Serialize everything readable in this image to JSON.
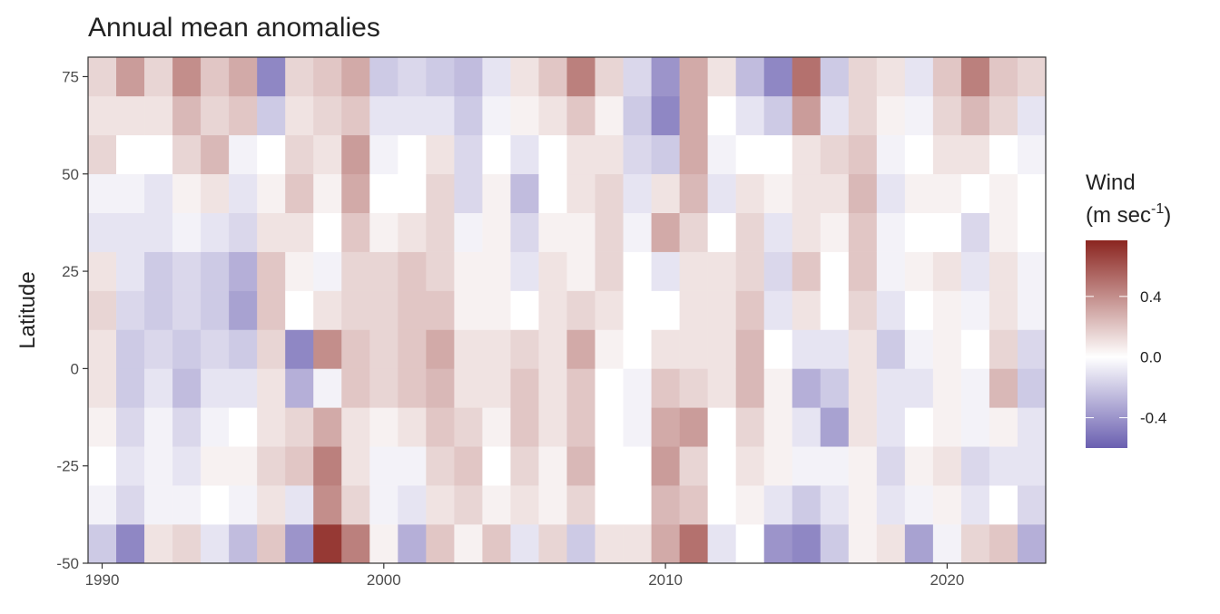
{
  "chart_data": {
    "type": "heatmap",
    "title": "Annual mean anomalies",
    "y_label": "Latitude",
    "legend_title": "Wind",
    "legend_unit": {
      "base": "(m sec",
      "sup": "-1",
      "end": ")"
    },
    "x": [
      1990,
      1991,
      1992,
      1993,
      1994,
      1995,
      1996,
      1997,
      1998,
      1999,
      2000,
      2001,
      2002,
      2003,
      2004,
      2005,
      2006,
      2007,
      2008,
      2009,
      2010,
      2011,
      2012,
      2013,
      2014,
      2015,
      2016,
      2017,
      2018,
      2019,
      2020,
      2021,
      2022,
      2023
    ],
    "y": [
      -45,
      -35,
      -25,
      -15,
      -5,
      5,
      15,
      25,
      35,
      45,
      55,
      65,
      75
    ],
    "z": [
      [
        -0.2,
        -0.05,
        0,
        0.05,
        0.1,
        0.1,
        0.15,
        0.1,
        -0.1,
        -0.05,
        0.15,
        0.1,
        0.15
      ],
      [
        -0.45,
        -0.15,
        -0.1,
        -0.15,
        -0.2,
        -0.2,
        -0.15,
        -0.1,
        -0.1,
        -0.05,
        0,
        0.1,
        0.35
      ],
      [
        0.1,
        -0.05,
        -0.05,
        -0.05,
        -0.1,
        -0.15,
        -0.2,
        -0.2,
        -0.1,
        -0.1,
        0,
        0.1,
        0.15
      ],
      [
        0.15,
        -0.05,
        -0.1,
        -0.15,
        -0.25,
        -0.2,
        -0.15,
        -0.15,
        -0.05,
        0.05,
        0.15,
        0.25,
        0.4
      ],
      [
        -0.1,
        0,
        0.05,
        -0.05,
        -0.1,
        -0.15,
        -0.2,
        -0.2,
        -0.1,
        0.1,
        0.25,
        0.15,
        0.2
      ],
      [
        -0.25,
        -0.05,
        0.05,
        0,
        -0.1,
        -0.2,
        -0.35,
        -0.3,
        -0.15,
        -0.1,
        -0.05,
        0.2,
        0.3
      ],
      [
        0.2,
        0.1,
        0.15,
        0.1,
        0.1,
        0.15,
        0.2,
        0.2,
        0.1,
        0.05,
        0,
        -0.2,
        -0.45
      ],
      [
        -0.4,
        -0.1,
        0.2,
        0.15,
        -0.3,
        -0.45,
        0,
        0.05,
        0.1,
        0.2,
        0.15,
        0.1,
        0.15
      ],
      [
        0.7,
        0.4,
        0.45,
        0.3,
        -0.05,
        0.4,
        0.1,
        -0.05,
        0,
        0.05,
        0.1,
        0.15,
        0.2
      ],
      [
        0.45,
        0.15,
        0.1,
        0.1,
        0.2,
        0.2,
        0.15,
        0.15,
        0.2,
        0.3,
        0.35,
        0.2,
        0.3
      ],
      [
        0.05,
        -0.05,
        -0.05,
        0.05,
        0.15,
        0.15,
        0.15,
        0.15,
        0.05,
        0,
        -0.05,
        -0.1,
        -0.2
      ],
      [
        -0.3,
        -0.1,
        -0.05,
        0.1,
        0.2,
        0.2,
        0.2,
        0.2,
        0.1,
        0,
        0,
        -0.1,
        -0.15
      ],
      [
        0.2,
        0.1,
        0.15,
        0.2,
        0.25,
        0.3,
        0.2,
        0.15,
        0.15,
        0.15,
        0.1,
        -0.1,
        -0.2
      ],
      [
        0.05,
        0.15,
        0.2,
        0.15,
        0.1,
        0.1,
        0.05,
        0.05,
        -0.05,
        -0.15,
        -0.15,
        -0.2,
        -0.25
      ],
      [
        0.2,
        0.05,
        0,
        0.05,
        0.1,
        0.1,
        0.05,
        0.05,
        0.05,
        0.05,
        0,
        -0.05,
        -0.1
      ],
      [
        -0.1,
        0.1,
        0.15,
        0.2,
        0.2,
        0.15,
        0,
        -0.1,
        -0.15,
        -0.25,
        -0.1,
        0.05,
        0.1
      ],
      [
        0.15,
        0.05,
        0.05,
        0.1,
        0.1,
        0.1,
        0.1,
        0.1,
        0.05,
        0,
        0,
        0.1,
        0.2
      ],
      [
        -0.2,
        0.15,
        0.25,
        0.2,
        0.2,
        0.3,
        0.15,
        0.05,
        0.05,
        0.1,
        0.1,
        0.2,
        0.45
      ],
      [
        0.1,
        0,
        0,
        0,
        0,
        0.05,
        0.1,
        0.15,
        0.15,
        0.15,
        0.1,
        0.05,
        0.15
      ],
      [
        0.1,
        0,
        0,
        -0.05,
        -0.05,
        0,
        0,
        0,
        -0.05,
        -0.1,
        -0.15,
        -0.2,
        -0.15
      ],
      [
        0.3,
        0.25,
        0.35,
        0.3,
        0.2,
        0.1,
        0,
        -0.1,
        0.3,
        0.1,
        -0.2,
        -0.45,
        -0.4
      ],
      [
        0.5,
        0.2,
        0.15,
        0.35,
        0.15,
        0.1,
        0.1,
        0.1,
        0.15,
        0.25,
        0.3,
        0.3,
        0.3
      ],
      [
        -0.1,
        0,
        0,
        0,
        0.1,
        0.1,
        0.1,
        0.1,
        0,
        -0.1,
        -0.05,
        0,
        0.1
      ],
      [
        0,
        0.05,
        0.1,
        0.15,
        0.25,
        0.25,
        0.2,
        0.15,
        0.15,
        0.1,
        0,
        -0.1,
        -0.25
      ],
      [
        -0.4,
        -0.1,
        0.05,
        0.05,
        0.05,
        0,
        -0.1,
        -0.15,
        -0.1,
        0.05,
        0,
        -0.2,
        -0.45
      ],
      [
        -0.45,
        -0.2,
        -0.05,
        -0.1,
        -0.3,
        -0.1,
        0.1,
        0.2,
        0.1,
        0.1,
        0.1,
        0.35,
        0.5
      ],
      [
        -0.2,
        -0.1,
        -0.05,
        -0.35,
        -0.2,
        -0.1,
        0,
        0,
        0.05,
        0.1,
        0.15,
        -0.1,
        -0.2
      ],
      [
        0.05,
        0.05,
        0.05,
        0.1,
        0.1,
        0.1,
        0.15,
        0.2,
        0.2,
        0.25,
        0.2,
        0.15,
        0.15
      ],
      [
        0.1,
        -0.1,
        -0.15,
        -0.1,
        -0.1,
        -0.2,
        -0.1,
        -0.05,
        -0.05,
        -0.1,
        -0.05,
        0.05,
        0.1
      ],
      [
        -0.35,
        -0.05,
        0.05,
        0,
        -0.1,
        -0.05,
        0,
        0.05,
        0,
        0.05,
        0,
        -0.05,
        -0.1
      ],
      [
        -0.05,
        0.05,
        0.1,
        0.05,
        0.05,
        0.05,
        0.05,
        0.1,
        0,
        0.05,
        0.1,
        0.15,
        0.2
      ],
      [
        0.15,
        -0.1,
        -0.15,
        -0.05,
        -0.05,
        0,
        -0.05,
        -0.1,
        -0.15,
        0,
        0.1,
        0.25,
        0.45
      ],
      [
        0.2,
        0,
        -0.1,
        0.05,
        0.25,
        0.15,
        0.1,
        0.1,
        0.05,
        0.05,
        0,
        0.15,
        0.2
      ],
      [
        -0.3,
        -0.15,
        -0.1,
        -0.1,
        -0.2,
        -0.15,
        -0.05,
        -0.05,
        0,
        0,
        -0.05,
        -0.1,
        0.15
      ]
    ],
    "xlim": [
      1989.5,
      2023.5
    ],
    "xticks": [
      1990,
      2000,
      2010,
      2020
    ],
    "ylim": [
      -50,
      80
    ],
    "yticks": [
      -50,
      -25,
      0,
      25,
      50,
      75
    ],
    "clim": [
      -0.6,
      0.77
    ],
    "cticks": [
      -0.4,
      {
        "value": 0,
        "label": "0.0"
      },
      0.4
    ],
    "colors": [
      "#6a5fb0",
      "#ffffff",
      "#8b2520"
    ]
  }
}
